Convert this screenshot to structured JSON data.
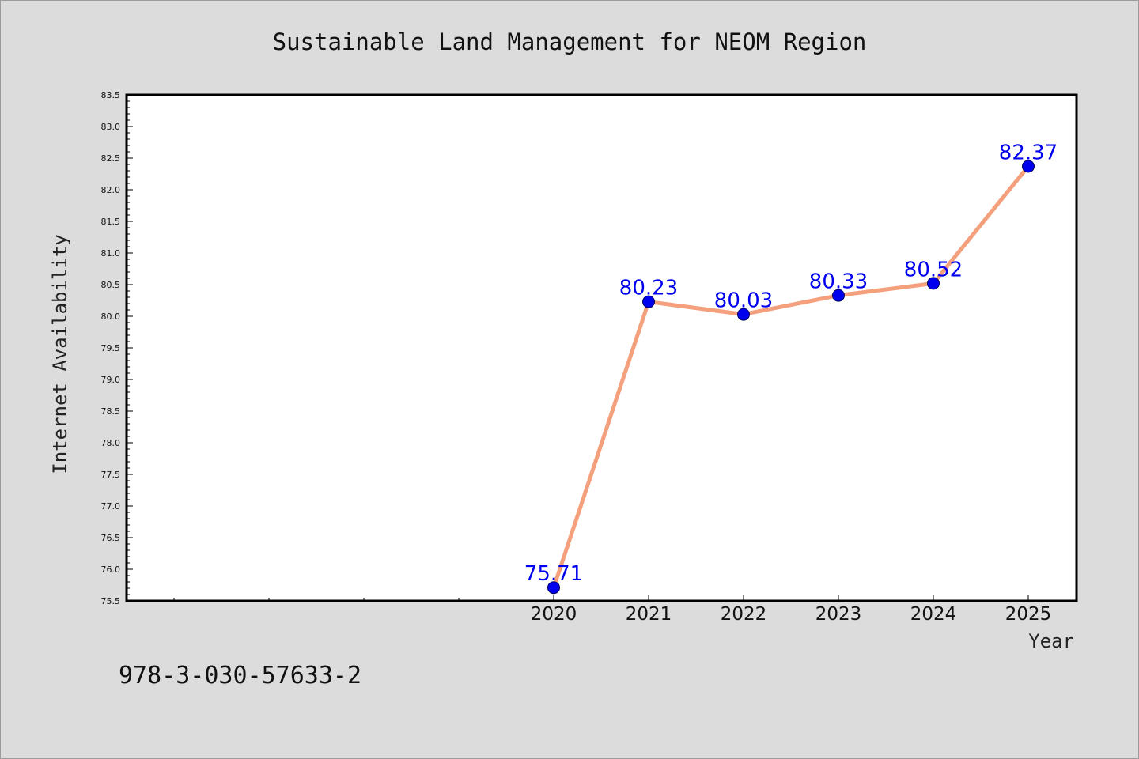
{
  "chart_data": {
    "type": "line",
    "title": "Sustainable Land Management for NEOM Region",
    "xlabel": "Year",
    "ylabel": "Internet Availability",
    "x": [
      "2020",
      "2021",
      "2022",
      "2023",
      "2024",
      "2025"
    ],
    "series": [
      {
        "values": [
          75.71,
          80.23,
          80.03,
          80.33,
          80.52,
          82.37
        ],
        "data_labels": [
          "75.71",
          "80.23",
          "80.03",
          "80.33",
          "80.52",
          "82.37"
        ]
      }
    ],
    "ylim": [
      75.5,
      83.5
    ],
    "yticks": [
      "75.5",
      "76.0",
      "76.5",
      "77.0",
      "77.5",
      "78.0",
      "78.5",
      "79.0",
      "79.5",
      "80.0",
      "80.5",
      "81.0",
      "81.5",
      "82.0",
      "82.5",
      "83.0",
      "83.5"
    ],
    "grid": false,
    "colors": {
      "line": "#f4a07c",
      "marker": "#0000ee",
      "data_label": "#0000ee",
      "background": "#dcdcdc",
      "plot_background": "#ffffff"
    }
  },
  "footnote": "978-3-030-57633-2"
}
